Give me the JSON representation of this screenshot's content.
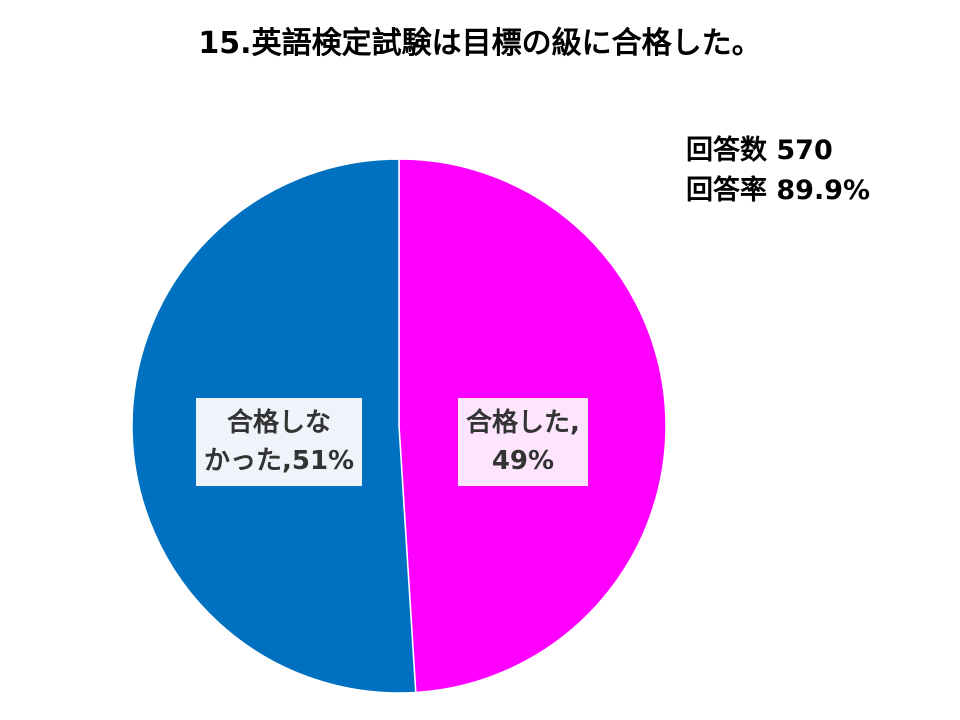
{
  "chart_data": {
    "type": "pie",
    "title": "15.英語検定試験は目標の級に合格した。",
    "values": [
      49,
      51
    ],
    "value_labels": [
      "合格した,\n49%",
      "合格しな\nかった,51%"
    ],
    "colors": [
      "#ff00ff",
      "#0070c0"
    ],
    "annotations": [
      "回答数 570",
      "回答率 89.9%"
    ]
  }
}
